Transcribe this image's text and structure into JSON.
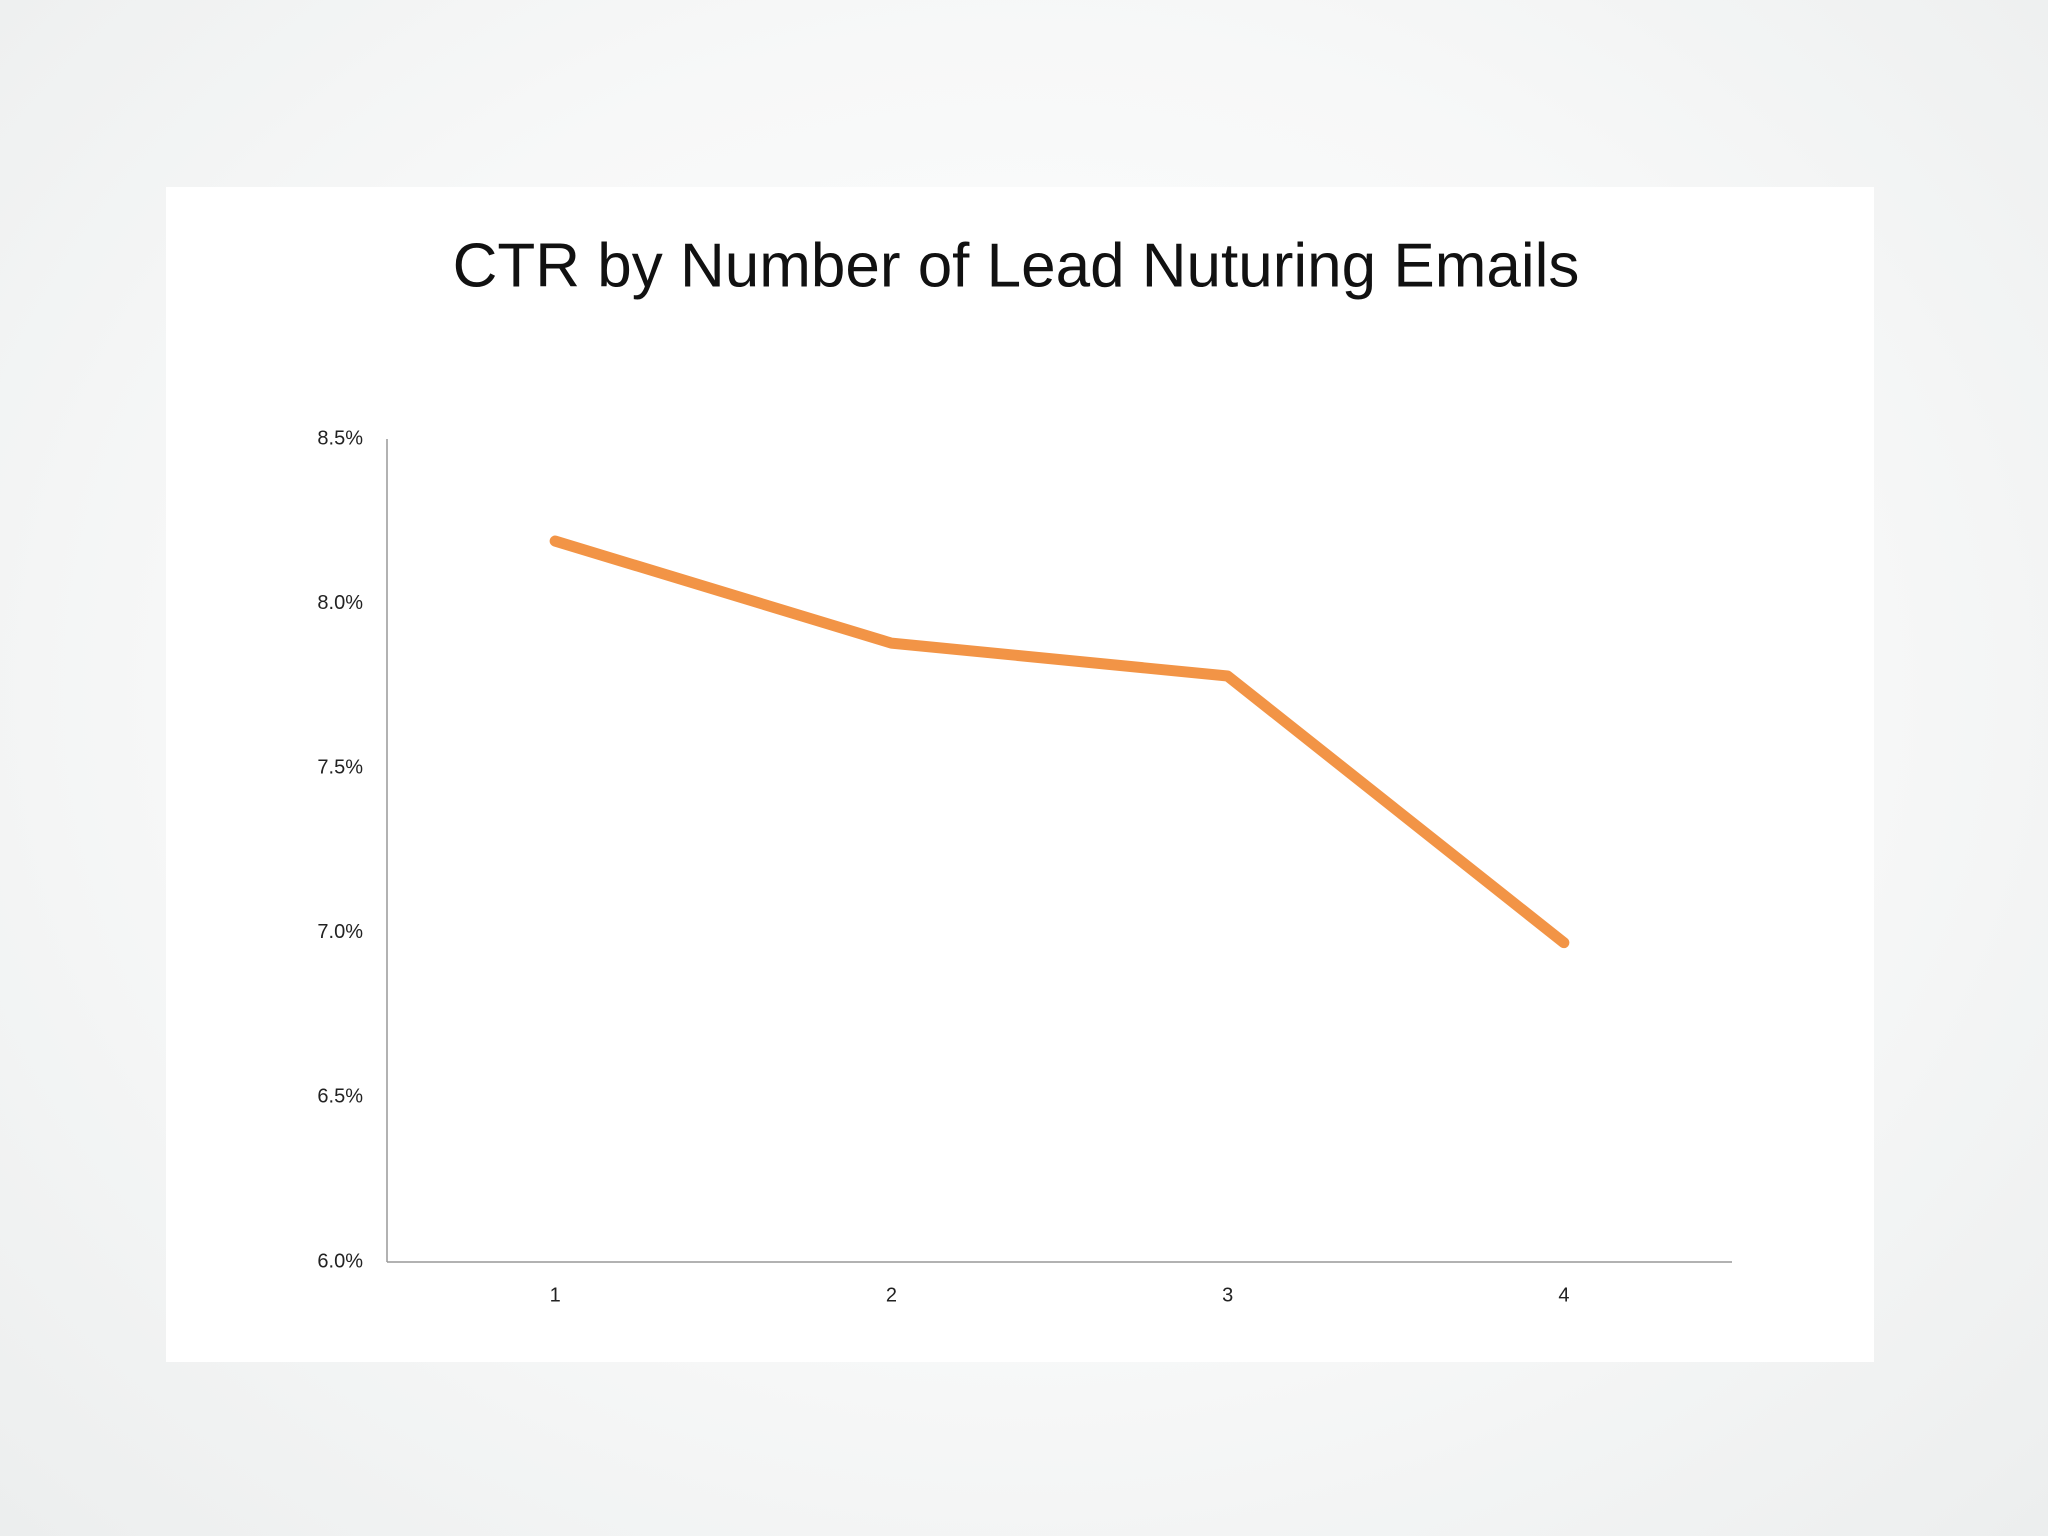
{
  "chart_data": {
    "type": "line",
    "title": "CTR by Number of Lead Nuturing Emails",
    "categories": [
      "1",
      "2",
      "3",
      "4"
    ],
    "values": [
      8.19,
      7.88,
      7.78,
      6.97
    ],
    "color": "#f29446",
    "ylim": [
      6.0,
      8.5
    ],
    "yticks": [
      {
        "value": 6.0,
        "label": "6.0%"
      },
      {
        "value": 6.5,
        "label": "6.5%"
      },
      {
        "value": 7.0,
        "label": "7.0%"
      },
      {
        "value": 7.5,
        "label": "7.5%"
      },
      {
        "value": 8.0,
        "label": "8.0%"
      },
      {
        "value": 8.5,
        "label": "8.5%"
      }
    ],
    "grid": false
  }
}
